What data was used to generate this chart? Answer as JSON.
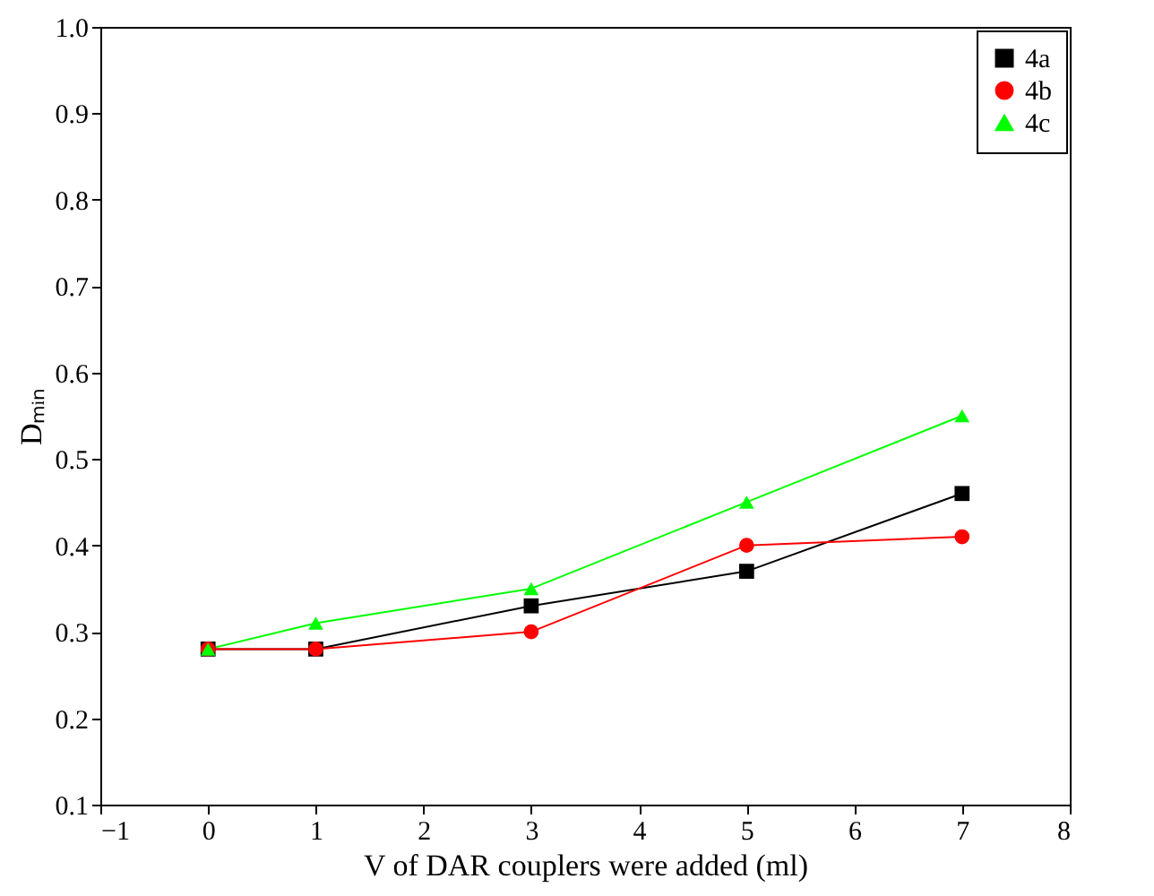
{
  "chart_data": {
    "type": "line",
    "xlabel": "V of DAR couplers were added (ml)",
    "ylabel": "Dₘᵢₙ",
    "x": [
      0,
      1,
      3,
      5,
      7
    ],
    "series": [
      {
        "name": "4a",
        "color": "#000000",
        "marker": "square",
        "values": [
          0.28,
          0.28,
          0.33,
          0.37,
          0.46
        ]
      },
      {
        "name": "4b",
        "color": "#ff0000",
        "marker": "circle",
        "values": [
          0.28,
          0.28,
          0.3,
          0.4,
          0.41
        ]
      },
      {
        "name": "4c",
        "color": "#00ff00",
        "marker": "triangle",
        "values": [
          0.28,
          0.31,
          0.35,
          0.45,
          0.55
        ]
      }
    ],
    "xlim": [
      -1,
      8
    ],
    "xticks": [
      -1,
      0,
      1,
      2,
      3,
      4,
      5,
      6,
      7,
      8
    ],
    "ylim": [
      0.1,
      1.0
    ],
    "yticks": [
      0.1,
      0.2,
      0.3,
      0.4,
      0.5,
      0.6,
      0.7,
      0.8,
      0.9,
      {
        "value": 1.0,
        "label": "1.0"
      }
    ],
    "grid": false,
    "legend": "top right",
    "line_style": "solid"
  }
}
